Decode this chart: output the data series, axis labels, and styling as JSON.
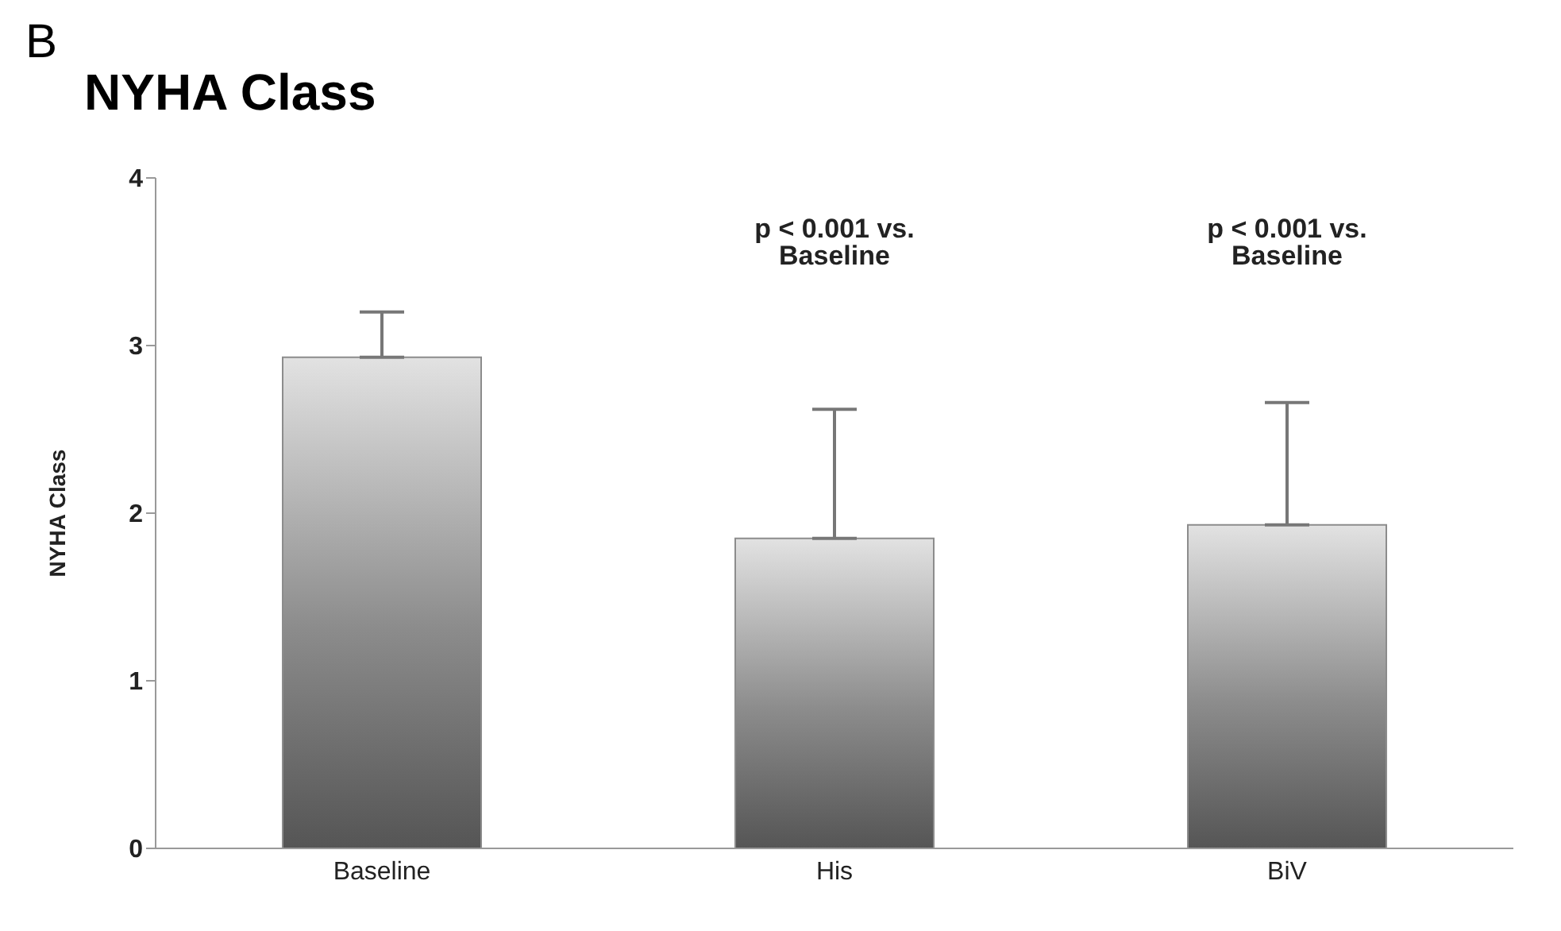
{
  "chart_data": {
    "type": "bar",
    "title": "NYHA Class",
    "subtitle": "B",
    "ylabel": "NYHA Class",
    "categories": [
      "Baseline",
      "His",
      "BiV"
    ],
    "values": [
      2.93,
      1.85,
      1.93
    ],
    "errors": [
      [
        2.93,
        3.2
      ],
      [
        1.85,
        2.62
      ],
      [
        1.93,
        2.66
      ]
    ],
    "color": "#8c8c8c",
    "ylim": [
      0,
      4
    ],
    "yticks": [
      0,
      1,
      2,
      3,
      4
    ],
    "grid": false,
    "legend": false,
    "annotations": [
      "p < 0.001 vs. Baseline",
      "p < 0.001 vs. Baseline"
    ]
  }
}
